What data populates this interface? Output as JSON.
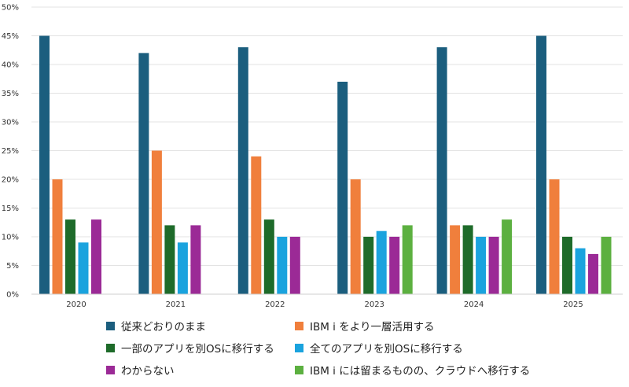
{
  "chart_data": {
    "type": "bar",
    "categories": [
      "2020",
      "2021",
      "2022",
      "2023",
      "2024",
      "2025"
    ],
    "ylim": [
      0,
      50
    ],
    "y_ticks": [
      "0%",
      "5%",
      "10%",
      "15%",
      "20%",
      "25%",
      "30%",
      "35%",
      "40%",
      "45%",
      "50%"
    ],
    "grid": true,
    "legend_position": "bottom",
    "series": [
      {
        "name": "従来どおりのまま",
        "color": "#1b5e7e",
        "values": [
          45,
          42,
          43,
          37,
          43,
          45
        ]
      },
      {
        "name": "IBM i をより一層活用する",
        "color": "#f07f3c",
        "values": [
          20,
          25,
          24,
          20,
          12,
          20
        ]
      },
      {
        "name": "一部のアプリを別OSに移行する",
        "color": "#1e6b2a",
        "values": [
          13,
          12,
          13,
          10,
          12,
          10
        ]
      },
      {
        "name": "全てのアプリを別OSに移行する",
        "color": "#1aa3de",
        "values": [
          9,
          9,
          10,
          11,
          10,
          8
        ]
      },
      {
        "name": "わからない",
        "color": "#9b2a96",
        "values": [
          13,
          12,
          10,
          10,
          10,
          7
        ]
      },
      {
        "name": "IBM i には留まるものの、クラウドへ移行する",
        "color": "#5cb040",
        "values": [
          null,
          null,
          null,
          12,
          13,
          10
        ]
      }
    ]
  }
}
